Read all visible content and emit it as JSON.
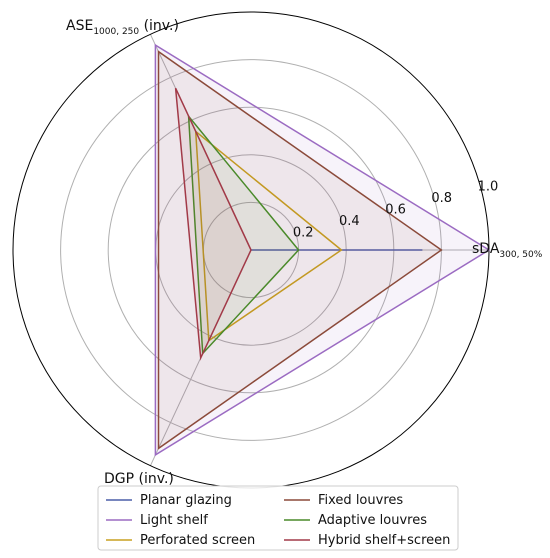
{
  "chart_data": {
    "type": "radar",
    "axes": [
      {
        "name": "sDA",
        "sub": "300, 50%"
      },
      {
        "name": "ASE",
        "sub": "1000, 250",
        "suffix": " (inv.)"
      },
      {
        "name": "DGP (inv.)",
        "sub": ""
      }
    ],
    "rlim": [
      0,
      1.0
    ],
    "rticks": [
      "0.2",
      "0.4",
      "0.6",
      "0.8",
      "1.0"
    ],
    "rtick_values": [
      0.2,
      0.4,
      0.6,
      0.8,
      1.0
    ],
    "grid": true,
    "legend_position": "bottom-center",
    "series": [
      {
        "name": "Planar glazing",
        "color": "#4c5fa8",
        "fill": false,
        "values": [
          0.72,
          0.0,
          0.0
        ]
      },
      {
        "name": "Light shelf",
        "color": "#9b6bc2",
        "fill": true,
        "values": [
          1.0,
          0.95,
          0.95
        ]
      },
      {
        "name": "Perforated screen",
        "color": "#c8a020",
        "fill": false,
        "values": [
          0.38,
          0.55,
          0.42
        ]
      },
      {
        "name": "Fixed louvres",
        "color": "#8b4a3a",
        "fill": true,
        "values": [
          0.8,
          0.92,
          0.92
        ]
      },
      {
        "name": "Adaptive louvres",
        "color": "#4a8a2a",
        "fill": true,
        "values": [
          0.2,
          0.62,
          0.48
        ]
      },
      {
        "name": "Hybrid shelf+screen",
        "color": "#a23a48",
        "fill": true,
        "values": [
          0.0,
          0.75,
          0.5
        ]
      }
    ],
    "colors": {
      "grid": "#b0b0b0",
      "frame": "#000000"
    }
  }
}
